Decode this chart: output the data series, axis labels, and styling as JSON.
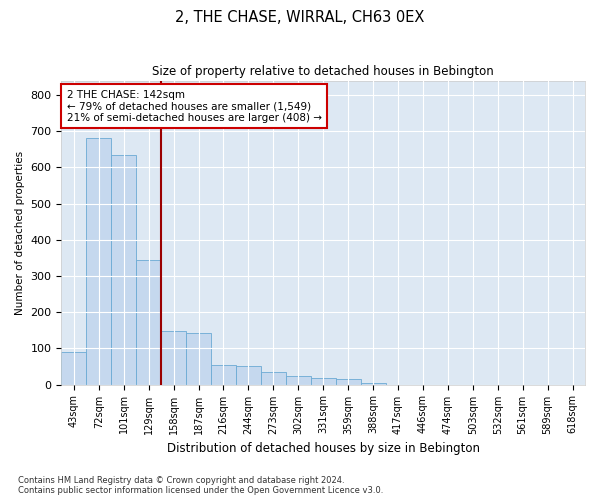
{
  "title": "2, THE CHASE, WIRRAL, CH63 0EX",
  "subtitle": "Size of property relative to detached houses in Bebington",
  "xlabel": "Distribution of detached houses by size in Bebington",
  "ylabel": "Number of detached properties",
  "bar_color": "#c5d8ee",
  "bar_edge_color": "#6baad4",
  "background_color": "#dde8f3",
  "grid_color": "#ffffff",
  "vline_color": "#9b0000",
  "annotation_text": "2 THE CHASE: 142sqm\n← 79% of detached houses are smaller (1,549)\n21% of semi-detached houses are larger (408) →",
  "annotation_box_color": "#ffffff",
  "annotation_box_edge": "#cc0000",
  "categories": [
    "43sqm",
    "72sqm",
    "101sqm",
    "129sqm",
    "158sqm",
    "187sqm",
    "216sqm",
    "244sqm",
    "273sqm",
    "302sqm",
    "331sqm",
    "359sqm",
    "388sqm",
    "417sqm",
    "446sqm",
    "474sqm",
    "503sqm",
    "532sqm",
    "561sqm",
    "589sqm",
    "618sqm"
  ],
  "values": [
    90,
    680,
    635,
    345,
    148,
    143,
    53,
    50,
    35,
    25,
    18,
    15,
    5,
    0,
    0,
    0,
    0,
    0,
    0,
    0,
    0
  ],
  "vline_pos": 3.5,
  "ylim": [
    0,
    840
  ],
  "yticks": [
    0,
    100,
    200,
    300,
    400,
    500,
    600,
    700,
    800
  ],
  "footnote": "Contains HM Land Registry data © Crown copyright and database right 2024.\nContains public sector information licensed under the Open Government Licence v3.0."
}
